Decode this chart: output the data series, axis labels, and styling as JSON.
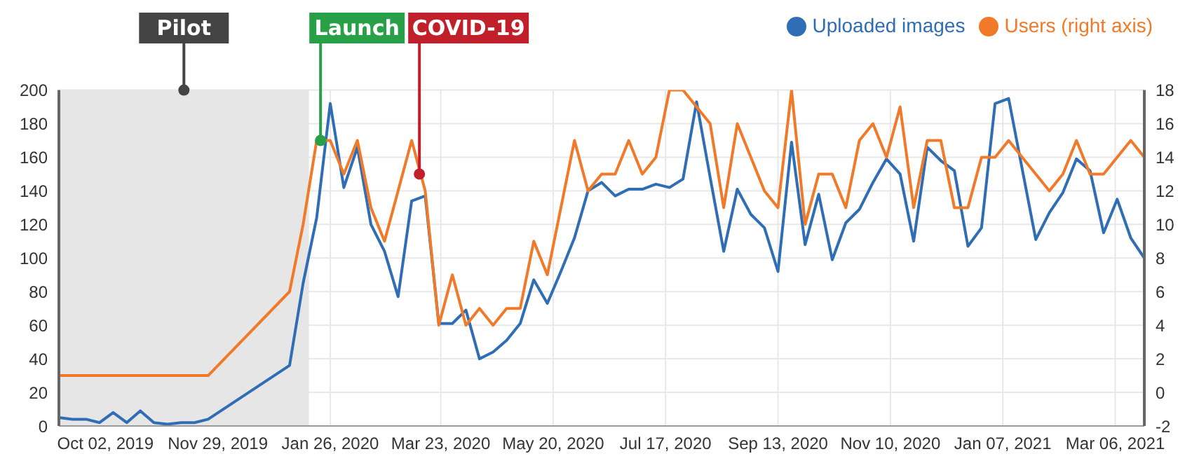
{
  "chart_data": {
    "type": "line",
    "x": [
      "2019-09-08",
      "2019-09-15",
      "2019-09-22",
      "2019-09-29",
      "2019-10-06",
      "2019-10-13",
      "2019-10-20",
      "2019-10-27",
      "2019-11-03",
      "2019-11-10",
      "2019-11-17",
      "2019-11-24",
      "2020-01-05",
      "2020-01-12",
      "2020-01-19",
      "2020-01-26",
      "2020-02-02",
      "2020-02-09",
      "2020-02-16",
      "2020-02-23",
      "2020-03-01",
      "2020-03-08",
      "2020-03-15",
      "2020-03-22",
      "2020-03-29",
      "2020-04-05",
      "2020-04-12",
      "2020-04-19",
      "2020-04-26",
      "2020-05-03",
      "2020-05-10",
      "2020-05-17",
      "2020-05-24",
      "2020-05-31",
      "2020-06-07",
      "2020-06-14",
      "2020-06-21",
      "2020-06-28",
      "2020-07-05",
      "2020-07-12",
      "2020-07-19",
      "2020-07-26",
      "2020-08-02",
      "2020-08-09",
      "2020-08-16",
      "2020-08-23",
      "2020-08-30",
      "2020-09-06",
      "2020-09-13",
      "2020-09-20",
      "2020-09-27",
      "2020-10-04",
      "2020-10-11",
      "2020-10-18",
      "2020-10-25",
      "2020-11-01",
      "2020-11-08",
      "2020-11-15",
      "2020-11-22",
      "2020-11-29",
      "2020-12-06",
      "2020-12-13",
      "2020-12-20",
      "2020-12-27",
      "2021-01-03",
      "2021-01-10",
      "2021-01-17",
      "2021-01-24",
      "2021-01-31",
      "2021-02-07",
      "2021-02-14",
      "2021-02-21",
      "2021-02-28",
      "2021-03-07",
      "2021-03-14",
      "2021-03-21"
    ],
    "series": [
      {
        "name": "Uploaded images",
        "color": "#2f6db5",
        "values": [
          5,
          4,
          4,
          2,
          8,
          2,
          9,
          2,
          1,
          2,
          2,
          4,
          36,
          85,
          124,
          192,
          142,
          166,
          120,
          104,
          77,
          134,
          137,
          61,
          61,
          69,
          40,
          44,
          51,
          61,
          87,
          73,
          92,
          112,
          140,
          145,
          137,
          141,
          141,
          144,
          142,
          147,
          193,
          148,
          104,
          141,
          126,
          118,
          92,
          169,
          108,
          138,
          99,
          121,
          129,
          145,
          159,
          150,
          110,
          166,
          158,
          152,
          107,
          118,
          192,
          195,
          153,
          111,
          127,
          139,
          159,
          152,
          115,
          135,
          112,
          100
        ]
      },
      {
        "name": "Users (right axis)",
        "color": "#f07a29",
        "axis": "y2",
        "values": [
          1,
          1,
          1,
          1,
          1,
          1,
          1,
          1,
          1,
          1,
          1,
          1,
          6,
          10,
          15,
          15,
          13,
          15,
          11,
          9,
          12,
          15,
          12,
          4,
          7,
          4,
          5,
          4,
          5,
          5,
          9,
          7,
          11,
          15,
          12,
          13,
          13,
          15,
          13,
          14,
          18,
          18,
          17,
          16,
          11,
          16,
          14,
          12,
          11,
          18,
          10,
          13,
          13,
          11,
          15,
          16,
          14,
          17,
          11,
          15,
          15,
          11,
          11,
          14,
          14,
          15,
          14,
          13,
          12,
          13,
          15,
          13,
          13,
          14,
          15,
          14
        ]
      }
    ],
    "xlim": [
      "2019-09-08",
      "2021-03-21"
    ],
    "xticks": [
      {
        "value": "2019-10-02",
        "label": "Oct 02, 2019"
      },
      {
        "value": "2019-11-29",
        "label": "Nov 29, 2019"
      },
      {
        "value": "2020-01-26",
        "label": "Jan 26, 2020"
      },
      {
        "value": "2020-03-23",
        "label": "Mar 23, 2020"
      },
      {
        "value": "2020-05-20",
        "label": "May 20, 2020"
      },
      {
        "value": "2020-07-17",
        "label": "Jul 17, 2020"
      },
      {
        "value": "2020-09-13",
        "label": "Sep 13, 2020"
      },
      {
        "value": "2020-11-10",
        "label": "Nov 10, 2020"
      },
      {
        "value": "2021-01-07",
        "label": "Jan 07, 2021"
      },
      {
        "value": "2021-03-06",
        "label": "Mar 06, 2021"
      }
    ],
    "ylim": [
      0,
      200
    ],
    "yticks": [
      0,
      20,
      40,
      60,
      80,
      100,
      120,
      140,
      160,
      180,
      200
    ],
    "y2lim": [
      -2,
      18
    ],
    "y2ticks": [
      -2,
      0,
      2,
      4,
      6,
      8,
      10,
      12,
      14,
      16,
      18
    ],
    "bands": [
      {
        "axis": "x",
        "from": "2019-09-08",
        "to": "2020-01-15",
        "label": "Pilot",
        "color": "#e6e6e6"
      }
    ],
    "annotations": [
      {
        "text": "Launch",
        "x": "2020-01-21",
        "y": 170
      },
      {
        "text": "COVID-19",
        "x": "2020-03-12",
        "y": 150
      }
    ],
    "grid": true,
    "legend": "top right",
    "marker": "none",
    "line_style": "solid"
  }
}
